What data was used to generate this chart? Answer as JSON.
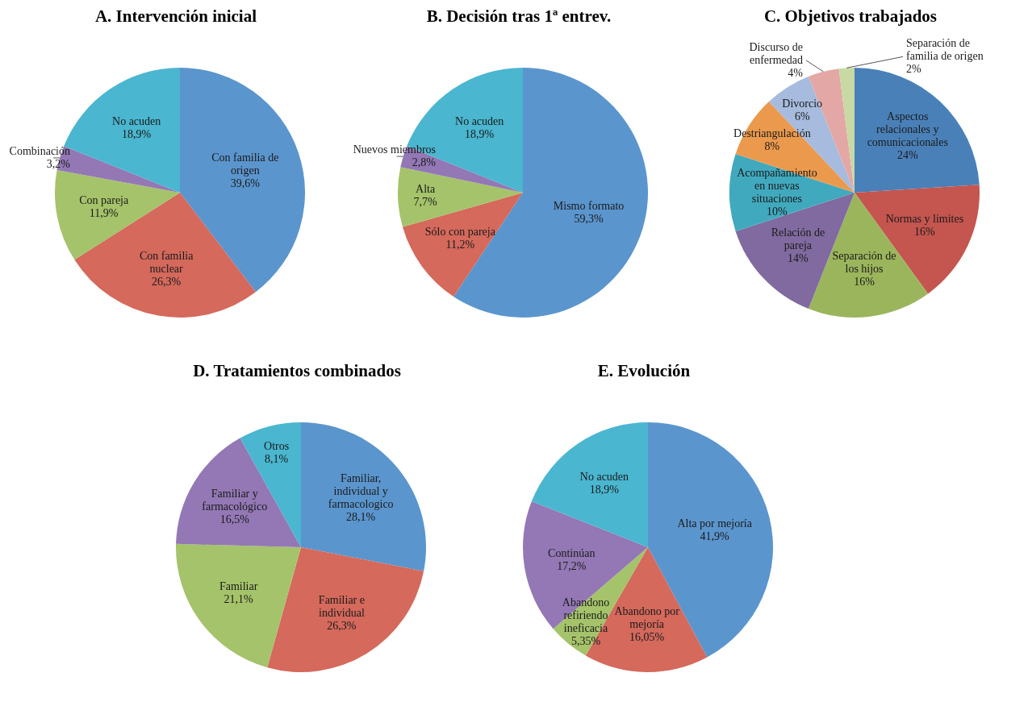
{
  "chart_data": [
    {
      "type": "pie",
      "title": "A. Intervención inicial",
      "categories": [
        "Con familia de origen",
        "Con familia nuclear",
        "Con pareja",
        "Combinación",
        "No acuden"
      ],
      "values": [
        39.6,
        26.3,
        11.9,
        3.2,
        18.9
      ],
      "value_labels": [
        "39,6%",
        "26,3%",
        "11,9%",
        "3,2%",
        "18,9%"
      ],
      "colors": [
        "#5b95cd",
        "#d4695c",
        "#a5c36a",
        "#9378b5",
        "#4ab6cf"
      ]
    },
    {
      "type": "pie",
      "title": "B. Decisión tras 1ª entrev.",
      "categories": [
        "Mismo formato",
        "Sólo con pareja",
        "Alta",
        "Nuevos miembros",
        "No acuden"
      ],
      "values": [
        59.3,
        11.2,
        7.7,
        2.8,
        18.9
      ],
      "value_labels": [
        "59,3%",
        "11,2%",
        "7,7%",
        "2,8%",
        "18,9%"
      ],
      "colors": [
        "#5b95cd",
        "#d4695c",
        "#a5c36a",
        "#9378b5",
        "#4ab6cf"
      ]
    },
    {
      "type": "pie",
      "title": "C. Objetivos trabajados",
      "categories": [
        "Aspectos relacionales y comunicacionales",
        "Normas y limites",
        "Separación de los hijos",
        "Relación de pareja",
        "Acompañamiento en nuevas situaciones",
        "Destriangulación",
        "Divorcio",
        "Discurso de enfermedad",
        "Separación de familia de origen"
      ],
      "values": [
        24,
        16,
        16,
        14,
        10,
        8,
        6,
        4,
        2
      ],
      "value_labels": [
        "24%",
        "16%",
        "16%",
        "14%",
        "10%",
        "8%",
        "6%",
        "4%",
        "2%"
      ],
      "colors": [
        "#4a80b8",
        "#c4554f",
        "#9bb55c",
        "#806a9f",
        "#41a9be",
        "#eb9a4d",
        "#a6bbdd",
        "#e3a7a6",
        "#c8d9a4"
      ]
    },
    {
      "type": "pie",
      "title": "D. Tratamientos combinados",
      "categories": [
        "Familiar, individual y farmacologico",
        "Familiar e individual",
        "Familiar",
        "Familiar y farmacológico",
        "Otros"
      ],
      "values": [
        28.1,
        26.3,
        21.1,
        16.5,
        8.1
      ],
      "value_labels": [
        "28,1%",
        "26,3%",
        "21,1%",
        "16,5%",
        "8,1%"
      ],
      "colors": [
        "#5b95cd",
        "#d4695c",
        "#a5c36a",
        "#9378b5",
        "#4ab6cf"
      ]
    },
    {
      "type": "pie",
      "title": "E. Evolución",
      "categories": [
        "Alta por mejoría",
        "Abandono por mejoría",
        "Abandono refiriendo ineficacia",
        "Continúan",
        "No acuden"
      ],
      "values": [
        41.9,
        16.05,
        5.35,
        17.2,
        18.9
      ],
      "value_labels": [
        "41,9%",
        "16,05%",
        "5,35%",
        "17,2%",
        "18,9%"
      ],
      "colors": [
        "#5b95cd",
        "#d4695c",
        "#a5c36a",
        "#9378b5",
        "#4ab6cf"
      ]
    }
  ]
}
